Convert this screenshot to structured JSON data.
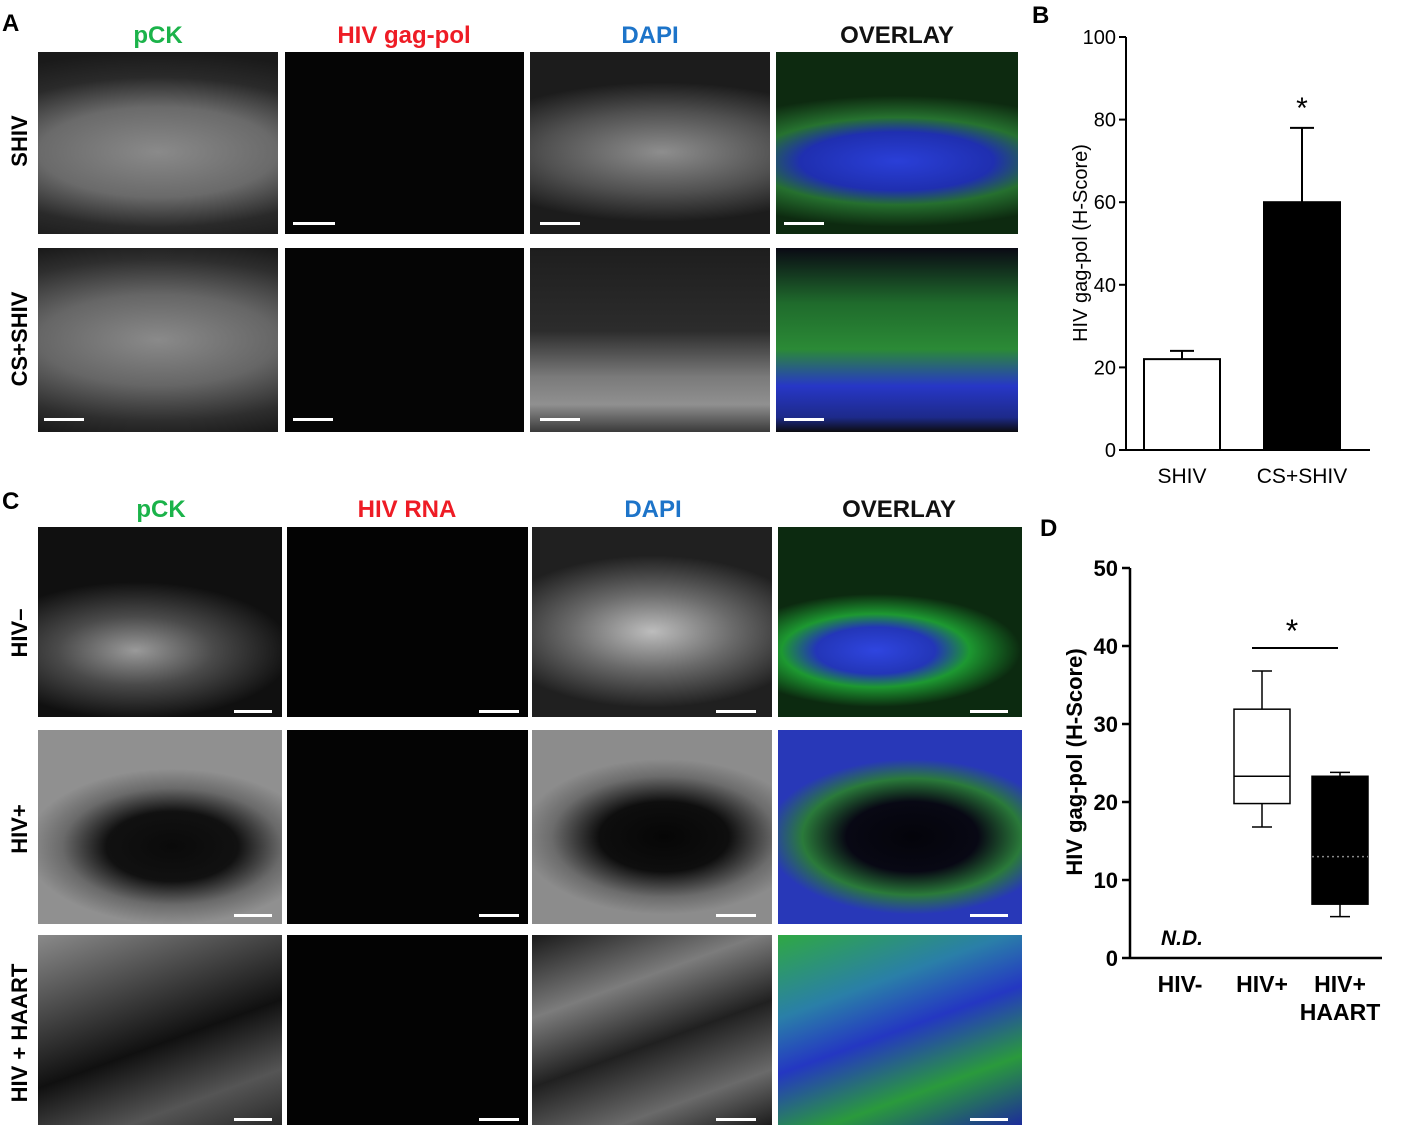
{
  "panel_a": {
    "letter": "A",
    "columns": [
      "pCK",
      "HIV gag-pol",
      "DAPI",
      "OVERLAY"
    ],
    "rows": [
      "SHIV",
      "CS+SHIV"
    ]
  },
  "panel_c": {
    "letter": "C",
    "columns": [
      "pCK",
      "HIV RNA",
      "DAPI",
      "OVERLAY"
    ],
    "rows": [
      "HIV–",
      "HIV+",
      "HIV + HAART"
    ]
  },
  "colors": {
    "pck": "#1bb34a",
    "hiv": "#ee1c25",
    "dapi": "#1d74c9",
    "overlay": "#111111"
  },
  "chart_data": [
    {
      "panel": "B",
      "type": "bar",
      "categories": [
        "SHIV",
        "CS+SHIV"
      ],
      "values": [
        22,
        60
      ],
      "errors": [
        2,
        18
      ],
      "bar_colors": [
        "#ffffff",
        "#000000"
      ],
      "ylabel": "HIV gag-pol (H-Score)",
      "ylim": [
        0,
        100
      ],
      "yticks": [
        0,
        20,
        40,
        60,
        80,
        100
      ],
      "annotation": "*"
    },
    {
      "panel": "D",
      "type": "box",
      "categories": [
        "HIV-",
        "HIV+",
        "HIV+ HAART"
      ],
      "boxes": [
        null,
        {
          "min": 16.8,
          "q1": 19.8,
          "median": 23.3,
          "q3": 31.9,
          "max": 36.8
        },
        {
          "min": 5.3,
          "q1": 6.9,
          "median": 13.0,
          "q3": 23.3,
          "max": 23.8
        }
      ],
      "box_fills": [
        "#ffffff",
        "#ffffff",
        "#000000"
      ],
      "ylabel": "HIV gag-pol (H-Score)",
      "ylim": [
        0,
        50
      ],
      "yticks": [
        0,
        10,
        20,
        30,
        40,
        50
      ],
      "nd_label": "N.D.",
      "annotation": "*"
    }
  ]
}
